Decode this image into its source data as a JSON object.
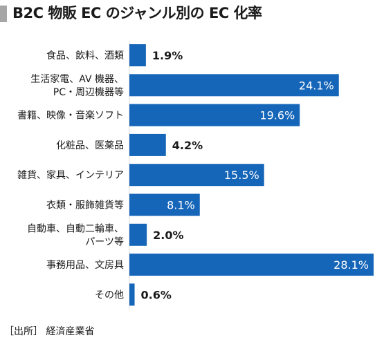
{
  "title": "B2C 物販 EC のジャンル別の EC 化率",
  "source": "［出所］ 経済産業省",
  "colors": {
    "bar": "#1565b8",
    "title_bar": "#a6a6a6",
    "label_inside": "#ffffff",
    "label_outside": "#1a1a1a"
  },
  "chart_data": {
    "type": "bar",
    "orientation": "horizontal",
    "title": "B2C 物販 EC のジャンル別の EC 化率",
    "categories": [
      [
        "食品、飲料、酒類"
      ],
      [
        "生活家電、AV 機器、",
        "PC・周辺機器等"
      ],
      [
        "書籍、映像・音楽ソフト"
      ],
      [
        "化粧品、医薬品"
      ],
      [
        "雑貨、家具、インテリア"
      ],
      [
        "衣類・服飾雑貨等"
      ],
      [
        "自動車、自動二輪車、",
        "パーツ等"
      ],
      [
        "事務用品、文房具"
      ],
      [
        "その他"
      ]
    ],
    "values": [
      1.9,
      24.1,
      19.6,
      4.2,
      15.5,
      8.1,
      2.0,
      28.1,
      0.6
    ],
    "value_labels": [
      "1.9%",
      "24.1%",
      "19.6%",
      "4.2%",
      "15.5%",
      "8.1%",
      "2.0%",
      "28.1%",
      "0.6%"
    ],
    "xlim": [
      0,
      28.1
    ],
    "grid": false,
    "legend": "none"
  }
}
